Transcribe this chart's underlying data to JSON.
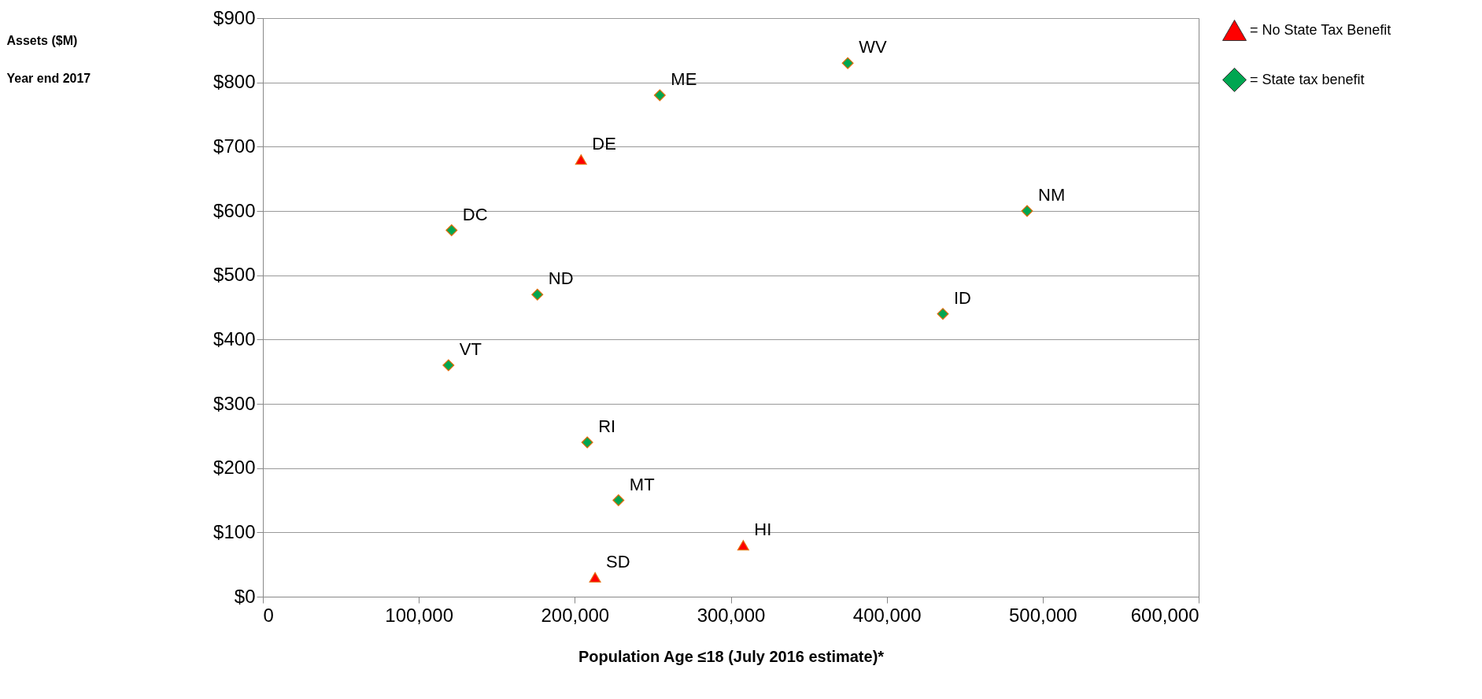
{
  "chart_data": {
    "type": "scatter",
    "xlabel": "Population Age ≤18 (July 2016 estimate)*",
    "ylabel": "Assets ($M)\nYear end 2017",
    "xlim": [
      0,
      600000
    ],
    "xticks": [
      {
        "value": 0,
        "label": "0"
      },
      {
        "value": 100000,
        "label": "100,000"
      },
      {
        "value": 200000,
        "label": "200,000"
      },
      {
        "value": 300000,
        "label": "300,000"
      },
      {
        "value": 400000,
        "label": "400,000"
      },
      {
        "value": 500000,
        "label": "500,000"
      },
      {
        "value": 600000,
        "label": "600,000"
      }
    ],
    "ylim": [
      0,
      900
    ],
    "yticks": [
      {
        "value": 0,
        "label": "$0"
      },
      {
        "value": 100,
        "label": "$100"
      },
      {
        "value": 200,
        "label": "$200"
      },
      {
        "value": 300,
        "label": "$300"
      },
      {
        "value": 400,
        "label": "$400"
      },
      {
        "value": 500,
        "label": "$500"
      },
      {
        "value": 600,
        "label": "$600"
      },
      {
        "value": 700,
        "label": "$700"
      },
      {
        "value": 800,
        "label": "$800"
      },
      {
        "value": 900,
        "label": "$900"
      }
    ],
    "grid": "y",
    "legend": "top right",
    "series": [
      {
        "name": "= No State Tax Benefit",
        "color": "#ff0000",
        "marker": "triangle",
        "x": [
          204000,
          308000,
          213000
        ],
        "values": [
          680,
          80,
          30
        ]
      },
      {
        "name": "= State tax benefit",
        "color": "#00a651",
        "marker": "diamond",
        "x": [
          375000,
          254500,
          121000,
          490000,
          176000,
          436000,
          119000,
          208000,
          228000
        ],
        "values": [
          830,
          780,
          570,
          600,
          470,
          440,
          360,
          240,
          150
        ]
      }
    ],
    "annotations": [
      {
        "text": "DE",
        "x": 204000,
        "y": 680
      },
      {
        "text": "HI",
        "x": 308000,
        "y": 80
      },
      {
        "text": "SD",
        "x": 213000,
        "y": 30
      },
      {
        "text": "WV",
        "x": 375000,
        "y": 830
      },
      {
        "text": "ME",
        "x": 254500,
        "y": 780
      },
      {
        "text": "DC",
        "x": 121000,
        "y": 570
      },
      {
        "text": "NM",
        "x": 490000,
        "y": 600
      },
      {
        "text": "ND",
        "x": 176000,
        "y": 470
      },
      {
        "text": "ID",
        "x": 436000,
        "y": 440
      },
      {
        "text": "VT",
        "x": 119000,
        "y": 360
      },
      {
        "text": "RI",
        "x": 208000,
        "y": 240
      },
      {
        "text": "MT",
        "x": 228000,
        "y": 150
      }
    ]
  }
}
